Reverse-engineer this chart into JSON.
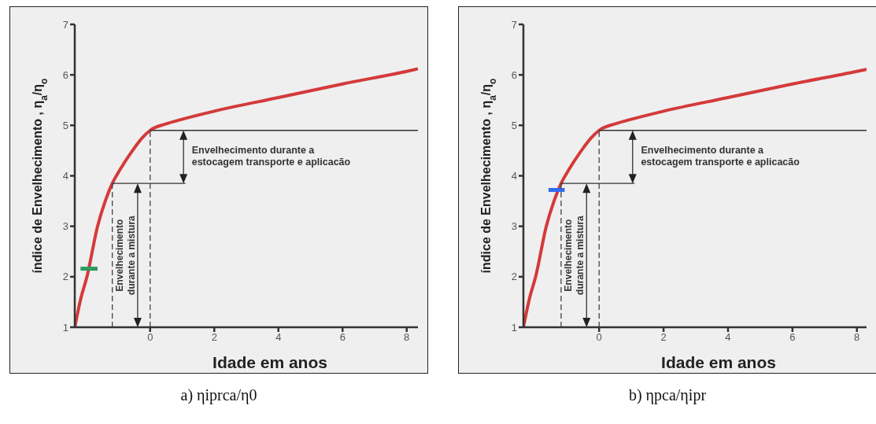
{
  "chart_data": [
    {
      "type": "line",
      "title": "a) ηiprca/η0",
      "xlabel": "Idade em anos",
      "ylabel": "índice de Envelhecimento , η$_{a}$/η$_{o}$",
      "xlim": [
        -2.35,
        8.35
      ],
      "xticks": [
        0,
        2,
        4,
        6,
        8
      ],
      "ylim": [
        1,
        7
      ],
      "yticks": [
        1,
        2,
        3,
        4,
        5,
        6,
        7
      ],
      "grid": false,
      "legend": false,
      "marker": "none",
      "series": [
        {
          "color": "#d43a3a",
          "x": [
            -2.35,
            -2.15,
            -1.97,
            -1.64,
            -1.4,
            -1.18,
            -0.96,
            -0.55,
            -0.25,
            0,
            0.5,
            1,
            2,
            4,
            6,
            8,
            8.35
          ],
          "values": [
            1,
            1.6,
            2,
            3,
            3.5,
            3.85,
            4.1,
            4.5,
            4.75,
            4.9,
            5.03,
            5.12,
            5.28,
            5.55,
            5.82,
            6.07,
            6.12
          ]
        },
        {
          "color": "#2e9a5e",
          "x": [
            -2.17,
            -1.64
          ],
          "values": [
            2.16,
            2.16
          ]
        },
        {
          "color": "#444444",
          "line_style": "dashed",
          "x": [
            -1.18,
            -1.18
          ],
          "values": [
            1,
            3.85
          ]
        },
        {
          "color": "#444444",
          "line_style": "dashed",
          "x": [
            0,
            0
          ],
          "values": [
            1,
            4.9
          ]
        },
        {
          "color": "#333333",
          "x": [
            -1.18,
            1.1
          ],
          "values": [
            3.85,
            3.85
          ]
        },
        {
          "color": "#333333",
          "x": [
            0,
            8.35
          ],
          "values": [
            4.9,
            4.9
          ]
        }
      ],
      "annotations": [
        "Envelhecimento durante a estocagem transporte e aplicacão",
        "Envelhecimento durante a mistura"
      ]
    },
    {
      "type": "line",
      "title": "b) ηpca/ηipr",
      "xlabel": "Idade em anos",
      "ylabel": "índice de Envelhecimento , η$_{a}$/η$_{o}$",
      "xlim": [
        -2.35,
        8.3
      ],
      "xticks": [
        0,
        2,
        4,
        6,
        8
      ],
      "ylim": [
        1,
        7
      ],
      "yticks": [
        1,
        2,
        3,
        4,
        5,
        6,
        7
      ],
      "grid": false,
      "legend": false,
      "marker": "none",
      "series": [
        {
          "color": "#d43a3a",
          "x": [
            -2.35,
            -2.15,
            -1.97,
            -1.64,
            -1.4,
            -1.18,
            -0.96,
            -0.55,
            -0.25,
            0,
            0.5,
            1,
            2,
            4,
            6,
            8,
            8.3
          ],
          "values": [
            1,
            1.6,
            2,
            3,
            3.5,
            3.85,
            4.1,
            4.5,
            4.75,
            4.9,
            5.03,
            5.12,
            5.28,
            5.55,
            5.82,
            6.07,
            6.11
          ]
        },
        {
          "color": "#2f6bf0",
          "x": [
            -1.57,
            -1.07
          ],
          "values": [
            3.72,
            3.72
          ]
        },
        {
          "color": "#444444",
          "line_style": "dashed",
          "x": [
            -1.18,
            -1.18
          ],
          "values": [
            1,
            3.85
          ]
        },
        {
          "color": "#444444",
          "line_style": "dashed",
          "x": [
            0,
            0
          ],
          "values": [
            1,
            4.9
          ]
        },
        {
          "color": "#333333",
          "x": [
            -1.18,
            1.1
          ],
          "values": [
            3.85,
            3.85
          ]
        },
        {
          "color": "#333333",
          "x": [
            0,
            8.3
          ],
          "values": [
            4.9,
            4.9
          ]
        }
      ],
      "annotations": [
        "Envelhecimento durante a estocagem transporte e aplicacão",
        "Envelhecimento durante a mistura"
      ]
    }
  ]
}
